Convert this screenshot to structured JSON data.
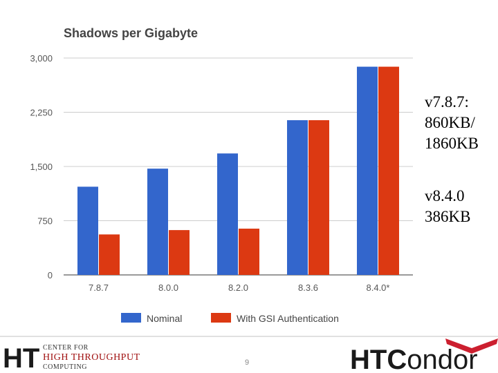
{
  "chart_data": {
    "type": "bar",
    "title": "Shadows per Gigabyte",
    "categories": [
      "7.8.7",
      "8.0.0",
      "8.2.0",
      "8.3.6",
      "8.4.0*"
    ],
    "series": [
      {
        "name": "Nominal",
        "color": "#3366cc",
        "values": [
          1220,
          1470,
          1680,
          2140,
          2880
        ]
      },
      {
        "name": "With GSI Authentication",
        "color": "#dc3912",
        "values": [
          560,
          620,
          640,
          2140,
          2880
        ]
      }
    ],
    "ylim": [
      0,
      3000
    ],
    "yticks": [
      "0",
      "750",
      "1,500",
      "2,250",
      "3,000"
    ],
    "ytick_values": [
      0,
      750,
      1500,
      2250,
      3000
    ],
    "xlabel": "",
    "ylabel": "",
    "grid": true,
    "legend_position": "bottom"
  },
  "annotations": [
    "v7.8.7:\n860KB/\n1860KB",
    "v8.4.0\n386KB"
  ],
  "footer": {
    "left_logo_letters": "HT",
    "left_logo_line1": "CENTER FOR",
    "left_logo_line2": "HIGH THROUGHPUT",
    "left_logo_line3": "COMPUTING",
    "page_number": "9",
    "right_logo_text_bold": "HTC",
    "right_logo_text": "ondor",
    "accent_color": "#cc1f2f"
  }
}
